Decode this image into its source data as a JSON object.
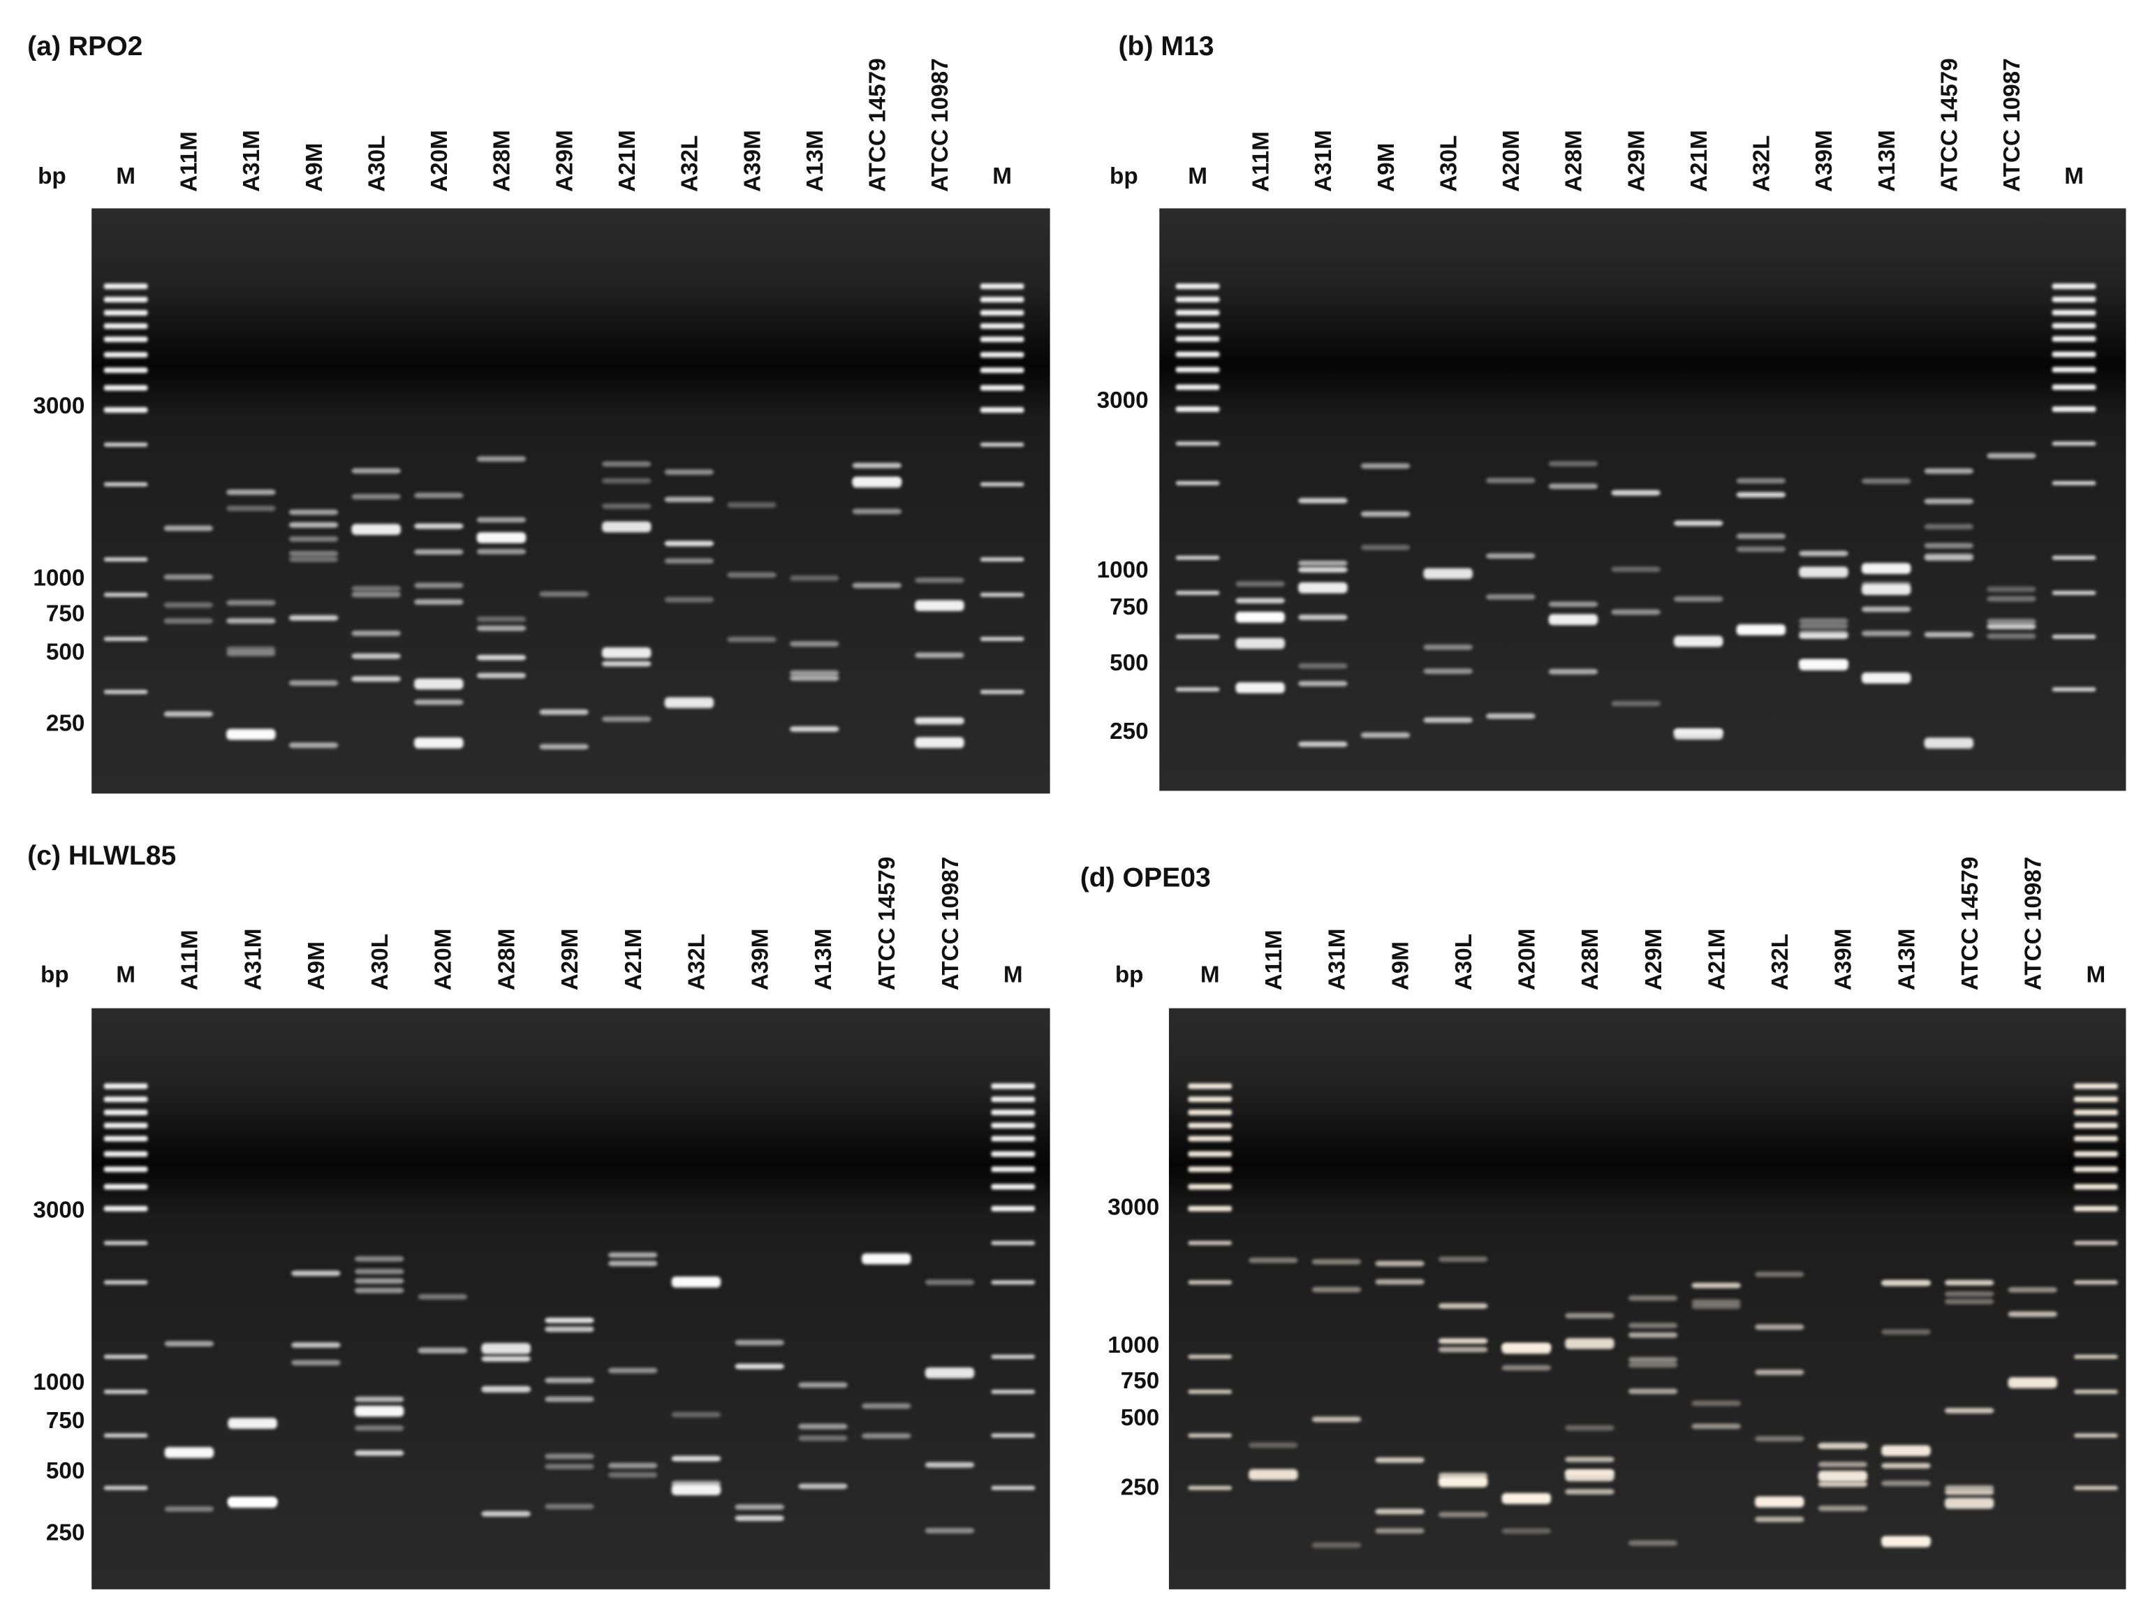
{
  "panels": [
    {
      "title": "(a) RPO2",
      "bp": "bp",
      "lanes": [
        "M",
        "A11M",
        "A31M",
        "A9M",
        "A30L",
        "A20M",
        "A28M",
        "A29M",
        "A21M",
        "A32L",
        "A39M",
        "A13M",
        "ATCC 14579",
        "ATCC 10987",
        "M"
      ],
      "sizes": [
        3000,
        1000,
        750,
        500,
        250
      ]
    },
    {
      "title": "(b) M13",
      "bp": "bp",
      "lanes": [
        "M",
        "A11M",
        "A31M",
        "A9M",
        "A30L",
        "A20M",
        "A28M",
        "A29M",
        "A21M",
        "A32L",
        "A39M",
        "A13M",
        "ATCC 14579",
        "ATCC 10987",
        "M"
      ],
      "sizes": [
        3000,
        1000,
        750,
        500,
        250
      ]
    },
    {
      "title": "(c) HLWL85",
      "bp": "bp",
      "lanes": [
        "M",
        "A11M",
        "A31M",
        "A9M",
        "A30L",
        "A20M",
        "A28M",
        "A29M",
        "A21M",
        "A32L",
        "A39M",
        "A13M",
        "ATCC 14579",
        "ATCC 10987",
        "M"
      ],
      "sizes": [
        3000,
        1000,
        750,
        500,
        250
      ]
    },
    {
      "title": "(d) OPE03",
      "bp": "bp",
      "lanes": [
        "M",
        "A11M",
        "A31M",
        "A9M",
        "A30L",
        "A20M",
        "A28M",
        "A29M",
        "A21M",
        "A32L",
        "A39M",
        "A13M",
        "ATCC 14579",
        "ATCC 10987",
        "M"
      ],
      "sizes": [
        3000,
        1000,
        750,
        500,
        250
      ]
    }
  ]
}
